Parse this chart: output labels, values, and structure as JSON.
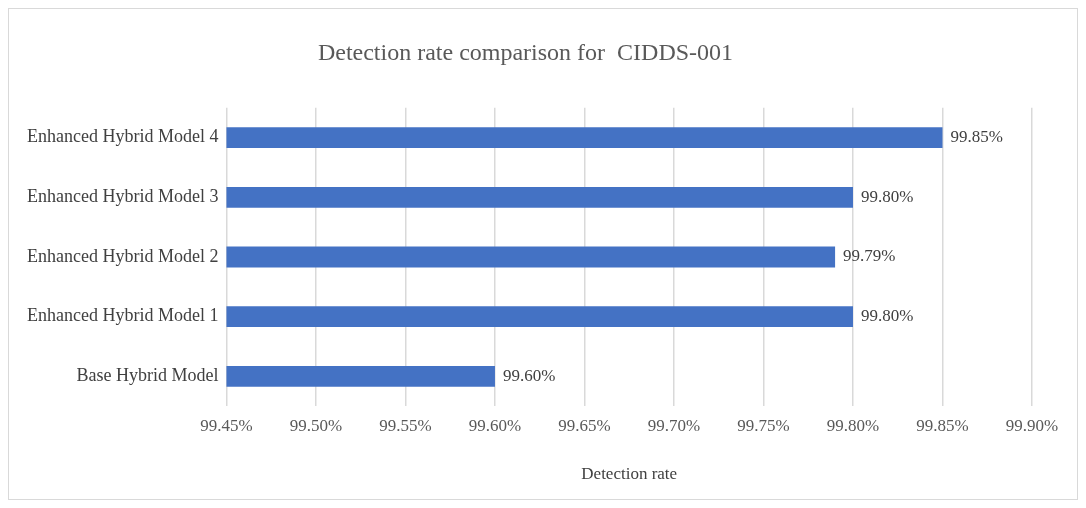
{
  "chart_data": {
    "type": "bar",
    "orientation": "horizontal",
    "title": "Detection rate comparison for  CIDDS-001",
    "xlabel": "Detection rate",
    "categories": [
      "Enhanced Hybrid Model 4",
      "Enhanced Hybrid Model 3",
      "Enhanced Hybrid Model 2",
      "Enhanced Hybrid Model 1",
      "Base Hybrid Model"
    ],
    "values": [
      99.85,
      99.8,
      99.79,
      99.8,
      99.6
    ],
    "value_labels": [
      "99.85%",
      "99.80%",
      "99.79%",
      "99.80%",
      "99.60%"
    ],
    "color": "#4472c4",
    "xlim": [
      99.45,
      99.9
    ],
    "xticks": [
      {
        "value": 99.45,
        "label": "99.45%"
      },
      {
        "value": 99.5,
        "label": "99.50%"
      },
      {
        "value": 99.55,
        "label": "99.55%"
      },
      {
        "value": 99.6,
        "label": "99.60%"
      },
      {
        "value": 99.65,
        "label": "99.65%"
      },
      {
        "value": 99.7,
        "label": "99.70%"
      },
      {
        "value": 99.75,
        "label": "99.75%"
      },
      {
        "value": 99.8,
        "label": "99.80%"
      },
      {
        "value": 99.85,
        "label": "99.85%"
      },
      {
        "value": 99.9,
        "label": "99.90%"
      }
    ],
    "grid": "x",
    "legend": false
  }
}
